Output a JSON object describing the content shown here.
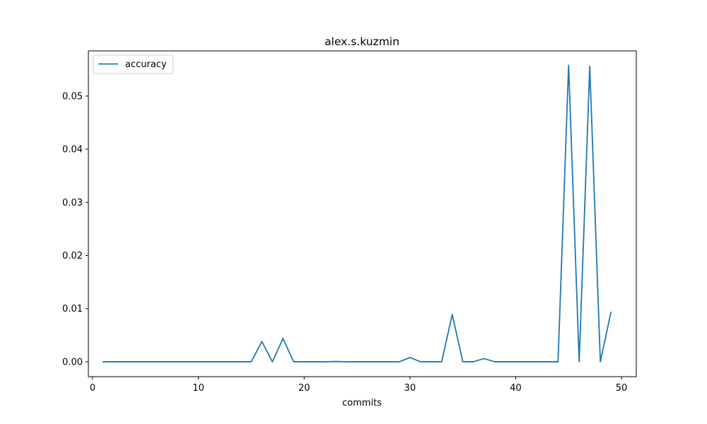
{
  "chart_data": {
    "type": "line",
    "title": "alex.s.kuzmin",
    "xlabel": "commits",
    "ylabel": "",
    "xlim": [
      -0.4,
      51.4
    ],
    "ylim": [
      -0.0028,
      0.0585
    ],
    "xticks": [
      0,
      10,
      20,
      30,
      40,
      50
    ],
    "yticks": [
      0.0,
      0.01,
      0.02,
      0.03,
      0.04,
      0.05
    ],
    "ytick_labels": [
      "0.00",
      "0.01",
      "0.02",
      "0.03",
      "0.04",
      "0.05"
    ],
    "legend": "upper left",
    "grid": false,
    "series": [
      {
        "name": "accuracy",
        "color": "#1f77b4",
        "x": [
          1,
          2,
          3,
          4,
          5,
          6,
          7,
          8,
          9,
          10,
          11,
          12,
          13,
          14,
          15,
          16,
          17,
          18,
          19,
          20,
          21,
          22,
          23,
          24,
          25,
          26,
          27,
          28,
          29,
          30,
          31,
          32,
          33,
          34,
          35,
          36,
          37,
          38,
          39,
          40,
          41,
          42,
          43,
          44,
          45,
          46,
          47,
          48,
          49
        ],
        "y": [
          0,
          0,
          0,
          0,
          0,
          0,
          0,
          0,
          0,
          0,
          0,
          0,
          0,
          0,
          0,
          0.0038,
          0,
          0.0044,
          0,
          0,
          0,
          0,
          5e-05,
          0,
          0,
          0,
          0,
          0,
          0,
          0.0008,
          0,
          0,
          0,
          0.0089,
          0,
          0,
          0.0006,
          0,
          0,
          0,
          0,
          0,
          0,
          0,
          0.0558,
          0,
          0.0556,
          0,
          0.0093
        ]
      }
    ]
  }
}
